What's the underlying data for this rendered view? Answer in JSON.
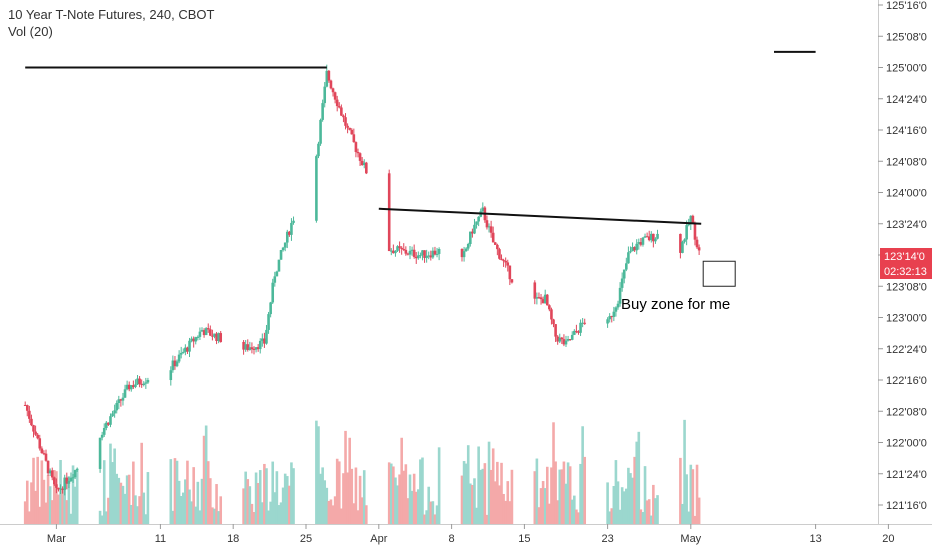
{
  "header": {
    "title": "10 Year T-Note Futures, 240, CBOT",
    "volume_label": "Vol (20)"
  },
  "colors": {
    "up": "#4CB89A",
    "down": "#E0465A",
    "vol_up": "#9BD7CE",
    "vol_down": "#F4A9A9",
    "badge": "#E8404F",
    "axis": "#333333"
  },
  "badges": {
    "price": "123'14'0",
    "countdown": "02:32:13"
  },
  "annotation": "Buy zone for me",
  "chart_data": {
    "type": "candlestick",
    "title": "10 Year T-Note Futures, 240, CBOT",
    "volume_indicator": "Vol (20)",
    "price_unit": "32nds",
    "ylim": [
      121.3,
      125.65
    ],
    "y_ticks": [
      "125'16'0",
      "125'08'0",
      "125'00'0",
      "124'24'0",
      "124'16'0",
      "124'08'0",
      "124'00'0",
      "123'24'0",
      "123'16'0",
      "123'08'0",
      "123'00'0",
      "122'24'0",
      "122'16'0",
      "122'08'0",
      "122'00'0",
      "121'24'0",
      "121'16'0"
    ],
    "x_ticks": [
      "Mar",
      "11",
      "18",
      "25",
      "Apr",
      "8",
      "15",
      "23",
      "May",
      "13",
      "20"
    ],
    "last_price": "123'14'0",
    "countdown": "02:32:13",
    "trend_lines": [
      {
        "from": [
          "Feb 26",
          125.0
        ],
        "to": [
          "Mar 27",
          125.0
        ]
      },
      {
        "from": [
          "Apr 1",
          123.87
        ],
        "to": [
          "May 2",
          123.75
        ]
      },
      {
        "from": [
          "May 9",
          125.125
        ],
        "to": [
          "May 13",
          125.125
        ]
      }
    ],
    "buy_zone": {
      "price_top": 123.45,
      "price_bottom": 123.25,
      "label": "Buy zone for me"
    },
    "ohlc_anchors": [
      {
        "date": "Feb 26",
        "close": 122.3
      },
      {
        "date": "Mar 1",
        "close": 121.6
      },
      {
        "date": "Mar 4",
        "close": 121.9
      },
      {
        "date": "Mar 8",
        "close": 122.45
      },
      {
        "date": "Mar 12",
        "close": 122.6
      },
      {
        "date": "Mar 15",
        "close": 122.9
      },
      {
        "date": "Mar 19",
        "close": 122.75
      },
      {
        "date": "Mar 21",
        "close": 122.8
      },
      {
        "date": "Mar 22",
        "close": 123.35
      },
      {
        "date": "Mar 25",
        "close": 124.1
      },
      {
        "date": "Mar 26",
        "close": 124.3
      },
      {
        "date": "Mar 27",
        "close": 124.95
      },
      {
        "date": "Mar 29",
        "close": 124.5
      },
      {
        "date": "Apr 1",
        "close": 123.95
      },
      {
        "date": "Apr 2",
        "close": 123.55
      },
      {
        "date": "Apr 5",
        "close": 123.5
      },
      {
        "date": "Apr 8",
        "close": 123.55
      },
      {
        "date": "Apr 9",
        "close": 123.45
      },
      {
        "date": "Apr 10",
        "close": 123.7
      },
      {
        "date": "Apr 11",
        "close": 123.85
      },
      {
        "date": "Apr 12",
        "close": 123.6
      },
      {
        "date": "Apr 15",
        "close": 123.12
      },
      {
        "date": "Apr 17",
        "close": 123.15
      },
      {
        "date": "Apr 18",
        "close": 122.85
      },
      {
        "date": "Apr 19",
        "close": 122.78
      },
      {
        "date": "Apr 22",
        "close": 123.1
      },
      {
        "date": "Apr 23",
        "close": 122.95
      },
      {
        "date": "Apr 24",
        "close": 123.15
      },
      {
        "date": "Apr 25",
        "close": 123.5
      },
      {
        "date": "Apr 26",
        "close": 123.6
      },
      {
        "date": "Apr 29",
        "close": 123.7
      },
      {
        "date": "Apr 30",
        "close": 123.55
      },
      {
        "date": "May 1",
        "close": 123.8
      },
      {
        "date": "May 2",
        "close": 123.45
      }
    ]
  }
}
